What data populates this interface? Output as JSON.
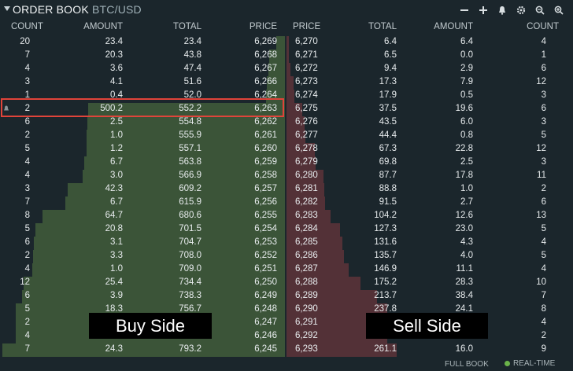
{
  "title": {
    "main": "ORDER BOOK",
    "pair": "BTC/USD"
  },
  "toolbar": {
    "icons": [
      "minus-icon",
      "plus-icon",
      "bell-icon",
      "gear-icon",
      "zoom-out-icon",
      "zoom-in-icon"
    ]
  },
  "headers": {
    "bid_count": "COUNT",
    "bid_amount": "AMOUNT",
    "bid_total": "TOTAL",
    "bid_price": "PRICE",
    "ask_price": "PRICE",
    "ask_total": "TOTAL",
    "ask_amount": "AMOUNT",
    "ask_count": "COUNT"
  },
  "rows": [
    {
      "bc": "20",
      "ba": "23.4",
      "bt": "23.4",
      "bp": "6,269",
      "ap": "6,270",
      "at": "6.4",
      "aa": "6.4",
      "ac": "4"
    },
    {
      "bc": "7",
      "ba": "20.3",
      "bt": "43.8",
      "bp": "6,268",
      "ap": "6,271",
      "at": "6.5",
      "aa": "0.0",
      "ac": "1"
    },
    {
      "bc": "4",
      "ba": "3.6",
      "bt": "47.4",
      "bp": "6,267",
      "ap": "6,272",
      "at": "9.4",
      "aa": "2.9",
      "ac": "6"
    },
    {
      "bc": "3",
      "ba": "4.1",
      "bt": "51.6",
      "bp": "6,266",
      "ap": "6,273",
      "at": "17.3",
      "aa": "7.9",
      "ac": "12"
    },
    {
      "bc": "1",
      "ba": "0.4",
      "bt": "52.0",
      "bp": "6,264",
      "ap": "6,274",
      "at": "17.9",
      "aa": "0.5",
      "ac": "3"
    },
    {
      "bc": "2",
      "ba": "500.2",
      "bt": "552.2",
      "bp": "6,263",
      "ap": "6,275",
      "at": "37.5",
      "aa": "19.6",
      "ac": "6"
    },
    {
      "bc": "6",
      "ba": "2.5",
      "bt": "554.8",
      "bp": "6,262",
      "ap": "6,276",
      "at": "43.5",
      "aa": "6.0",
      "ac": "3"
    },
    {
      "bc": "2",
      "ba": "1.0",
      "bt": "555.9",
      "bp": "6,261",
      "ap": "6,277",
      "at": "44.4",
      "aa": "0.8",
      "ac": "5"
    },
    {
      "bc": "5",
      "ba": "1.2",
      "bt": "557.1",
      "bp": "6,260",
      "ap": "6,278",
      "at": "67.3",
      "aa": "22.8",
      "ac": "12"
    },
    {
      "bc": "4",
      "ba": "6.7",
      "bt": "563.8",
      "bp": "6,259",
      "ap": "6,279",
      "at": "69.8",
      "aa": "2.5",
      "ac": "3"
    },
    {
      "bc": "4",
      "ba": "3.0",
      "bt": "566.9",
      "bp": "6,258",
      "ap": "6,280",
      "at": "87.7",
      "aa": "17.8",
      "ac": "11"
    },
    {
      "bc": "3",
      "ba": "42.3",
      "bt": "609.2",
      "bp": "6,257",
      "ap": "6,281",
      "at": "88.8",
      "aa": "1.0",
      "ac": "2"
    },
    {
      "bc": "7",
      "ba": "6.7",
      "bt": "615.9",
      "bp": "6,256",
      "ap": "6,282",
      "at": "91.5",
      "aa": "2.7",
      "ac": "6"
    },
    {
      "bc": "8",
      "ba": "64.7",
      "bt": "680.6",
      "bp": "6,255",
      "ap": "6,283",
      "at": "104.2",
      "aa": "12.6",
      "ac": "13"
    },
    {
      "bc": "5",
      "ba": "20.8",
      "bt": "701.5",
      "bp": "6,254",
      "ap": "6,284",
      "at": "127.3",
      "aa": "23.0",
      "ac": "5"
    },
    {
      "bc": "6",
      "ba": "3.1",
      "bt": "704.7",
      "bp": "6,253",
      "ap": "6,285",
      "at": "131.6",
      "aa": "4.3",
      "ac": "4"
    },
    {
      "bc": "2",
      "ba": "3.3",
      "bt": "708.0",
      "bp": "6,252",
      "ap": "6,286",
      "at": "135.7",
      "aa": "4.0",
      "ac": "5"
    },
    {
      "bc": "4",
      "ba": "1.0",
      "bt": "709.0",
      "bp": "6,251",
      "ap": "6,287",
      "at": "146.9",
      "aa": "11.1",
      "ac": "4"
    },
    {
      "bc": "12",
      "ba": "25.4",
      "bt": "734.4",
      "bp": "6,250",
      "ap": "6,288",
      "at": "175.2",
      "aa": "28.3",
      "ac": "10"
    },
    {
      "bc": "6",
      "ba": "3.9",
      "bt": "738.3",
      "bp": "6,249",
      "ap": "6,289",
      "at": "213.7",
      "aa": "38.4",
      "ac": "7"
    },
    {
      "bc": "5",
      "ba": "18.3",
      "bt": "756.7",
      "bp": "6,248",
      "ap": "6,290",
      "at": "237.8",
      "aa": "24.1",
      "ac": "8"
    },
    {
      "bc": "2",
      "ba": "",
      "bt": "",
      "bp": "6,247",
      "ap": "6,291",
      "at": "",
      "aa": "",
      "ac": "4"
    },
    {
      "bc": "4",
      "ba": "",
      "bt": "",
      "bp": "6,246",
      "ap": "6,292",
      "at": "",
      "aa": "",
      "ac": "2"
    },
    {
      "bc": "7",
      "ba": "24.3",
      "bt": "793.2",
      "bp": "6,245",
      "ap": "6,293",
      "at": "261.1",
      "aa": "16.0",
      "ac": "9"
    }
  ],
  "overlays": {
    "buy": "Buy Side",
    "sell": "Sell Side"
  },
  "footer": {
    "full_book": "FULL BOOK",
    "realtime": "REAL-TIME"
  },
  "colors": {
    "buy_depth": "#3f5a3a",
    "sell_depth": "#5a3338",
    "highlight": "#e1443a",
    "live_dot": "#6bb34a"
  }
}
